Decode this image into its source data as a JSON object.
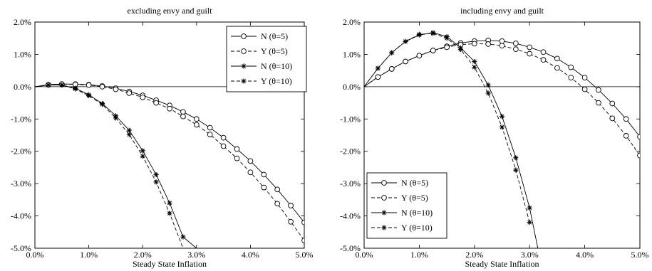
{
  "chart_data": [
    {
      "type": "line",
      "title": "excluding envy and guilt",
      "xlabel": "Steady State Inflation",
      "ylabel": "",
      "xlim": [
        0,
        5
      ],
      "ylim": [
        -5,
        2
      ],
      "x_unit": "%",
      "y_unit": "%",
      "xticks": [
        "0.0%",
        "1.0%",
        "2.0%",
        "3.0%",
        "4.0%",
        "5.0%"
      ],
      "yticks": [
        "2.0%",
        "1.0%",
        "0.0%",
        "-1.0%",
        "-2.0%",
        "-3.0%",
        "-4.0%",
        "-5.0%"
      ],
      "legend_position": "top-right",
      "grid": false,
      "series": [
        {
          "name": "N (θ=5)",
          "marker": "circle",
          "line": "solid",
          "x": [
            0,
            0.25,
            0.5,
            0.75,
            1.0,
            1.25,
            1.5,
            1.75,
            2.0,
            2.25,
            2.5,
            2.75,
            3.0,
            3.25,
            3.5,
            3.75,
            4.0,
            4.25,
            4.5,
            4.75,
            5.0
          ],
          "y": [
            0,
            0.06,
            0.08,
            0.08,
            0.06,
            0.02,
            -0.05,
            -0.15,
            -0.27,
            -0.42,
            -0.58,
            -0.78,
            -1.0,
            -1.27,
            -1.58,
            -1.93,
            -2.3,
            -2.72,
            -3.18,
            -3.68,
            -4.2
          ]
        },
        {
          "name": "Y (θ=5)",
          "marker": "circle",
          "line": "dashed",
          "x": [
            0,
            0.25,
            0.5,
            0.75,
            1.0,
            1.25,
            1.5,
            1.75,
            2.0,
            2.25,
            2.5,
            2.75,
            3.0,
            3.25,
            3.5,
            3.75,
            4.0,
            4.25,
            4.5,
            4.75,
            5.0
          ],
          "y": [
            0,
            0.06,
            0.08,
            0.07,
            0.05,
            0.0,
            -0.08,
            -0.2,
            -0.33,
            -0.5,
            -0.68,
            -0.92,
            -1.18,
            -1.48,
            -1.84,
            -2.22,
            -2.65,
            -3.12,
            -3.62,
            -4.18,
            -4.76
          ]
        },
        {
          "name": "N (θ=10)",
          "marker": "star",
          "line": "solid",
          "x": [
            0,
            0.25,
            0.5,
            0.75,
            1.0,
            1.25,
            1.5,
            1.75,
            2.0,
            2.25,
            2.5,
            2.75,
            3.0
          ],
          "y": [
            0,
            0.05,
            0.05,
            -0.05,
            -0.25,
            -0.52,
            -0.9,
            -1.35,
            -1.98,
            -2.72,
            -3.6,
            -4.65,
            -5.0
          ]
        },
        {
          "name": "Y (θ=10)",
          "marker": "star",
          "line": "dashed",
          "x": [
            0,
            0.25,
            0.5,
            0.75,
            1.0,
            1.25,
            1.5,
            1.75,
            2.0,
            2.25,
            2.5,
            2.75
          ],
          "y": [
            0,
            0.05,
            0.05,
            -0.07,
            -0.28,
            -0.55,
            -0.97,
            -1.48,
            -2.15,
            -2.95,
            -3.92,
            -5.0
          ]
        }
      ]
    },
    {
      "type": "line",
      "title": "including envy and guilt",
      "xlabel": "Steady State Inflation",
      "ylabel": "",
      "xlim": [
        0,
        5
      ],
      "ylim": [
        -5,
        2
      ],
      "x_unit": "%",
      "y_unit": "%",
      "xticks": [
        "0.0%",
        "1.0%",
        "2.0%",
        "3.0%",
        "4.0%",
        "5.0%"
      ],
      "yticks": [
        "2.0%",
        "1.0%",
        "0.0%",
        "-1.0%",
        "-2.0%",
        "-3.0%",
        "-4.0%",
        "-5.0%"
      ],
      "legend_position": "bottom-left",
      "grid": false,
      "series": [
        {
          "name": "N (θ=5)",
          "marker": "circle",
          "line": "solid",
          "x": [
            0,
            0.25,
            0.5,
            0.75,
            1.0,
            1.25,
            1.5,
            1.75,
            2.0,
            2.25,
            2.5,
            2.75,
            3.0,
            3.25,
            3.5,
            3.75,
            4.0,
            4.25,
            4.5,
            4.75,
            5.0
          ],
          "y": [
            0,
            0.3,
            0.55,
            0.78,
            0.96,
            1.12,
            1.25,
            1.35,
            1.41,
            1.43,
            1.41,
            1.34,
            1.22,
            1.07,
            0.87,
            0.6,
            0.28,
            -0.1,
            -0.52,
            -1.0,
            -1.55
          ]
        },
        {
          "name": "Y (θ=5)",
          "marker": "circle",
          "line": "dashed",
          "x": [
            0,
            0.25,
            0.5,
            0.75,
            1.0,
            1.25,
            1.5,
            1.75,
            2.0,
            2.25,
            2.5,
            2.75,
            3.0,
            3.25,
            3.5,
            3.75,
            4.0,
            4.25,
            4.5,
            4.75,
            5.0
          ],
          "y": [
            0,
            0.3,
            0.55,
            0.78,
            0.96,
            1.12,
            1.22,
            1.3,
            1.33,
            1.32,
            1.27,
            1.16,
            1.02,
            0.83,
            0.58,
            0.28,
            -0.08,
            -0.5,
            -0.98,
            -1.52,
            -2.13
          ]
        },
        {
          "name": "N (θ=10)",
          "marker": "star",
          "line": "solid",
          "x": [
            0,
            0.25,
            0.5,
            0.75,
            1.0,
            1.25,
            1.5,
            1.75,
            2.0,
            2.25,
            2.5,
            2.75,
            3.0,
            3.15
          ],
          "y": [
            0,
            0.57,
            1.05,
            1.4,
            1.6,
            1.67,
            1.55,
            1.2,
            0.78,
            0.05,
            -0.92,
            -2.2,
            -3.75,
            -5.0
          ]
        },
        {
          "name": "Y (θ=10)",
          "marker": "star",
          "line": "dashed",
          "x": [
            0,
            0.25,
            0.5,
            0.75,
            1.0,
            1.25,
            1.5,
            1.75,
            2.0,
            2.25,
            2.5,
            2.75,
            3.0
          ],
          "y": [
            0,
            0.57,
            1.05,
            1.4,
            1.62,
            1.65,
            1.5,
            1.15,
            0.6,
            -0.2,
            -1.25,
            -2.58,
            -4.2
          ]
        }
      ]
    }
  ]
}
